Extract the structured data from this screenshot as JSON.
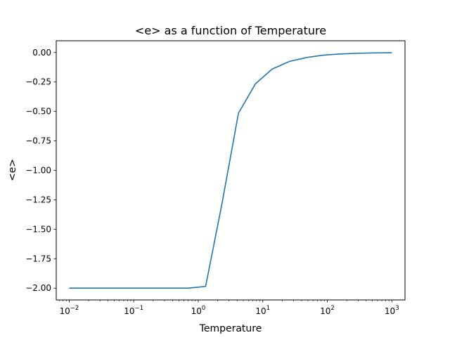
{
  "chart_data": {
    "type": "line",
    "title": "<e> as a function of Temperature",
    "xlabel": "Temperature",
    "ylabel": "<e>",
    "xscale": "log",
    "xlim": [
      0.0063,
      1600
    ],
    "ylim": [
      -2.1,
      0.1
    ],
    "grid": false,
    "line_color": "#1f77b4",
    "x_ticks": [
      {
        "value": 0.01,
        "base": "10",
        "exp": "−2"
      },
      {
        "value": 0.1,
        "base": "10",
        "exp": "−1"
      },
      {
        "value": 1,
        "base": "10",
        "exp": "0"
      },
      {
        "value": 10,
        "base": "10",
        "exp": "1"
      },
      {
        "value": 100,
        "base": "10",
        "exp": "2"
      },
      {
        "value": 1000,
        "base": "10",
        "exp": "3"
      }
    ],
    "y_ticks": [
      {
        "value": 0,
        "label": "0.00"
      },
      {
        "value": -0.25,
        "label": "−0.25"
      },
      {
        "value": -0.5,
        "label": "−0.50"
      },
      {
        "value": -0.75,
        "label": "−0.75"
      },
      {
        "value": -1.0,
        "label": "−1.00"
      },
      {
        "value": -1.25,
        "label": "−1.25"
      },
      {
        "value": -1.5,
        "label": "−1.50"
      },
      {
        "value": -1.75,
        "label": "−1.75"
      },
      {
        "value": -2.0,
        "label": "−2.00"
      }
    ],
    "series": [
      {
        "x": [
          0.01,
          0.7,
          1.3,
          2.3,
          4.2,
          7.7,
          14,
          26,
          48,
          88,
          160,
          300,
          550,
          1000
        ],
        "y": [
          -2.0,
          -2.0,
          -1.985,
          -1.3,
          -0.515,
          -0.265,
          -0.14,
          -0.075,
          -0.042,
          -0.022,
          -0.012,
          -0.006,
          -0.003,
          -0.0015
        ]
      }
    ]
  }
}
